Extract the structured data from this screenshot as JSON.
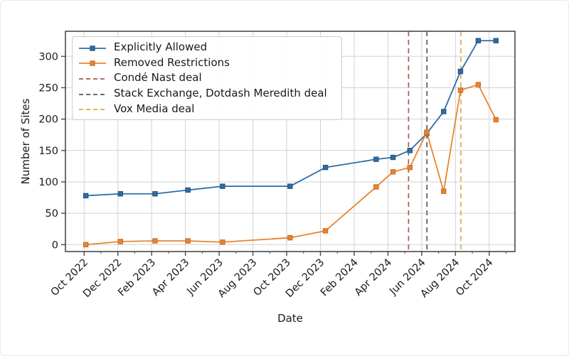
{
  "figure": {
    "background": "#ffffff",
    "frame_color": "#4a4a4a",
    "grid_color": "#d2d2d2",
    "text_color": "#1a1a1a"
  },
  "chart_data": {
    "type": "line",
    "title": "",
    "xlabel": "Date",
    "ylabel": "Number of Sites",
    "grid": true,
    "legend_position": "upper left",
    "x_axis": {
      "tick_labels": [
        "Oct 2022",
        "Dec 2022",
        "Feb 2023",
        "Apr 2023",
        "Jun 2023",
        "Aug 2023",
        "Oct 2023",
        "Dec 2023",
        "Feb 2024",
        "Apr 2024",
        "Jun 2024",
        "Aug 2024",
        "Oct 2024"
      ],
      "tick_months": [
        0,
        2,
        4,
        6,
        8,
        10,
        12,
        14,
        16,
        18,
        20,
        22,
        24
      ],
      "minor_tick_months": [
        1,
        3,
        5,
        7,
        9,
        11,
        13,
        15,
        17,
        19,
        21,
        23,
        25
      ],
      "xlim_months": [
        -1.1,
        25.5
      ]
    },
    "y_axis": {
      "ticks": [
        0,
        50,
        100,
        150,
        200,
        250,
        300
      ],
      "ylim": [
        -11,
        340
      ]
    },
    "point_labels": [
      "Oct 2022",
      "Dec 2022",
      "Feb 2023",
      "Apr 2023",
      "Jun 2023",
      "Oct 2023",
      "Dec 2023",
      "Mar 2024",
      "Apr 2024",
      "May 2024",
      "Jun 2024",
      "Jul 2024",
      "Aug 2024",
      "Sep 2024",
      "Oct 2024"
    ],
    "x_months": [
      0.1,
      2.15,
      4.2,
      6.15,
      8.2,
      12.2,
      14.3,
      17.3,
      18.3,
      19.3,
      20.3,
      21.3,
      22.3,
      23.35,
      24.4
    ],
    "series": [
      {
        "name": "Explicitly Allowed",
        "color": "#2e6ca6",
        "marker_edge": "#24537d",
        "marker": "square",
        "values": [
          78,
          81,
          81,
          87,
          93,
          93,
          123,
          136,
          139,
          150,
          177,
          212,
          276,
          325,
          325
        ]
      },
      {
        "name": "Removed Restrictions",
        "color": "#e8842f",
        "marker_edge": "#c96a20",
        "marker": "square",
        "values": [
          0,
          5,
          6,
          6,
          4,
          11,
          22,
          92,
          116,
          123,
          179,
          85,
          246,
          255,
          199
        ]
      }
    ],
    "events": [
      {
        "name": "Condé Nast deal",
        "color": "#ab5a50",
        "x_month": 19.22,
        "approx_date": "May 2024"
      },
      {
        "name": "Stack Exchange, Dotdash Meredith deal",
        "color": "#55575f",
        "x_month": 20.31,
        "approx_date": "Jun 2024"
      },
      {
        "name": "Vox Media deal",
        "color": "#d9ab4e",
        "x_month": 22.32,
        "approx_date": "Aug 2024"
      }
    ]
  }
}
